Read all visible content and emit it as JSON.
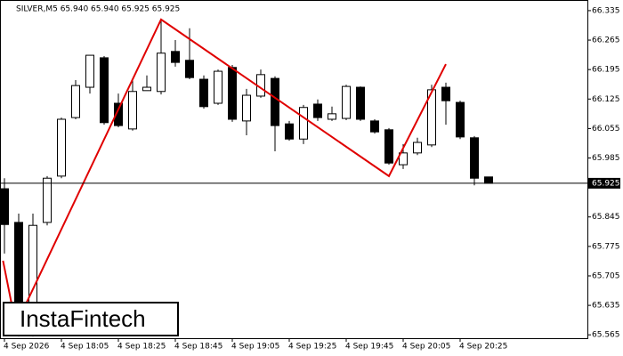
{
  "chart_data": {
    "type": "candlestick",
    "title": "SILVER,M5  65.940 65.940 65.925 65.925",
    "watermark": "InstaFintech",
    "categories": [
      "4 Sep 2026",
      null,
      null,
      null,
      "4 Sep 18:05",
      null,
      null,
      null,
      "4 Sep 18:25",
      null,
      null,
      null,
      "4 Sep 18:45",
      null,
      null,
      null,
      "4 Sep 19:05",
      null,
      null,
      null,
      "4 Sep 19:25",
      null,
      null,
      null,
      "4 Sep 19:45",
      null,
      null,
      null,
      "4 Sep 20:05",
      null,
      null,
      null,
      "4 Sep 20:25",
      null,
      null
    ],
    "open": [
      65.912,
      65.832,
      65.567,
      65.832,
      65.942,
      66.081,
      66.153,
      66.223,
      66.115,
      66.054,
      66.145,
      66.143,
      66.238,
      66.217,
      66.172,
      66.115,
      66.2,
      66.073,
      66.132,
      66.174,
      66.066,
      66.03,
      66.113,
      66.077,
      66.079,
      66.153,
      66.073,
      66.052,
      65.969,
      65.997,
      66.016,
      66.153,
      66.117,
      66.033,
      65.94
    ],
    "high": [
      65.937,
      65.853,
      65.853,
      65.942,
      66.081,
      66.17,
      66.229,
      66.227,
      66.138,
      66.17,
      66.181,
      66.314,
      66.265,
      66.293,
      66.181,
      66.195,
      66.206,
      66.149,
      66.195,
      66.179,
      66.073,
      66.111,
      66.124,
      66.107,
      66.159,
      66.155,
      66.077,
      66.056,
      66.018,
      66.033,
      66.159,
      66.164,
      66.121,
      66.037,
      65.94
    ],
    "low": [
      65.758,
      65.561,
      65.561,
      65.825,
      65.937,
      66.077,
      66.138,
      66.064,
      66.058,
      66.05,
      66.145,
      66.136,
      66.202,
      66.172,
      66.102,
      66.111,
      66.071,
      66.039,
      66.128,
      66.001,
      66.026,
      66.018,
      66.073,
      66.073,
      66.075,
      66.073,
      66.043,
      65.969,
      65.959,
      65.992,
      66.011,
      66.064,
      66.03,
      65.92,
      65.925
    ],
    "close": [
      65.827,
      65.567,
      65.825,
      65.937,
      66.077,
      66.157,
      66.229,
      66.069,
      66.062,
      66.143,
      66.153,
      66.234,
      66.212,
      66.176,
      66.107,
      66.191,
      66.077,
      66.134,
      66.183,
      66.062,
      66.03,
      66.105,
      66.081,
      66.09,
      66.155,
      66.077,
      66.047,
      65.973,
      65.997,
      66.022,
      66.147,
      66.121,
      66.035,
      65.937,
      65.925
    ],
    "up_color": "#ffffff",
    "down_color": "#000000",
    "ylim": [
      65.557,
      66.356
    ],
    "yticks": [
      65.565,
      65.635,
      65.705,
      65.775,
      65.845,
      65.985,
      66.055,
      66.125,
      66.195,
      66.265,
      66.335
    ],
    "price_line": 65.925,
    "pattern": {
      "color": "#e00000",
      "x": [
        -0.1,
        0.8,
        11,
        27,
        31
      ],
      "values": [
        65.741,
        65.588,
        66.314,
        65.942,
        66.208
      ]
    }
  }
}
